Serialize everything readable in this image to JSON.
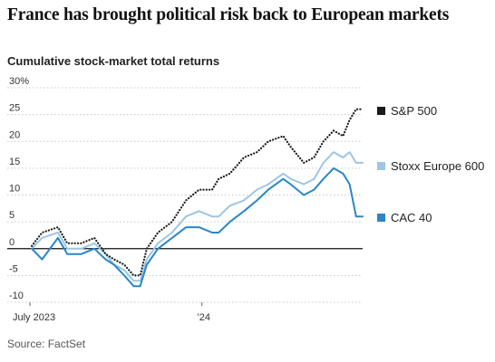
{
  "header": {
    "title": "France has brought political risk back to European markets",
    "subtitle": "Cumulative stock-market total returns"
  },
  "footer": {
    "source": "Source: FactSet"
  },
  "colors": {
    "sp500": "#1a1a1a",
    "stoxx": "#9cc6e3",
    "cac": "#2a86c8",
    "zero_line": "#111111",
    "grid": "#c8c8c8"
  },
  "chart_data": {
    "type": "line",
    "title": "Cumulative stock-market total returns",
    "xlabel": "",
    "ylabel": "",
    "x_ticks": [
      "July 2023",
      "'24"
    ],
    "y_ticks": [
      "30%",
      "25",
      "20",
      "15",
      "10",
      "5",
      "0",
      "-5",
      "-10"
    ],
    "y_tick_values": [
      30,
      25,
      20,
      15,
      10,
      5,
      0,
      -5,
      -10
    ],
    "ylim": [
      -10,
      30
    ],
    "xlim": [
      "2023-07-01",
      "2024-06-21"
    ],
    "grid": "horizontal dotted",
    "legend": "right",
    "series": [
      {
        "name": "S&P 500",
        "key": "sp500",
        "style": "dotted",
        "x": [
          "2023-07-03",
          "2023-07-14",
          "2023-07-31",
          "2023-08-10",
          "2023-08-25",
          "2023-09-08",
          "2023-09-20",
          "2023-09-29",
          "2023-10-10",
          "2023-10-20",
          "2023-10-27",
          "2023-11-03",
          "2023-11-15",
          "2023-11-30",
          "2023-12-15",
          "2023-12-29",
          "2024-01-12",
          "2024-01-19",
          "2024-01-31",
          "2024-02-15",
          "2024-02-29",
          "2024-03-12",
          "2024-03-28",
          "2024-04-05",
          "2024-04-19",
          "2024-04-30",
          "2024-05-10",
          "2024-05-21",
          "2024-05-31",
          "2024-06-07",
          "2024-06-14",
          "2024-06-21"
        ],
        "values": [
          0.5,
          3,
          4,
          1,
          1,
          2,
          -1,
          -2,
          -3,
          -5,
          -5,
          0,
          3,
          5,
          9,
          11,
          11,
          13,
          14,
          17,
          18,
          20,
          21,
          19,
          16,
          17,
          20,
          22,
          21,
          24,
          26,
          26
        ]
      },
      {
        "name": "Stoxx Europe 600",
        "key": "stoxx",
        "style": "solid",
        "x": [
          "2023-07-03",
          "2023-07-14",
          "2023-07-31",
          "2023-08-10",
          "2023-08-25",
          "2023-09-08",
          "2023-09-20",
          "2023-09-29",
          "2023-10-10",
          "2023-10-20",
          "2023-10-27",
          "2023-11-03",
          "2023-11-15",
          "2023-11-30",
          "2023-12-15",
          "2023-12-29",
          "2024-01-12",
          "2024-01-19",
          "2024-01-31",
          "2024-02-15",
          "2024-02-29",
          "2024-03-12",
          "2024-03-28",
          "2024-04-05",
          "2024-04-19",
          "2024-04-30",
          "2024-05-10",
          "2024-05-21",
          "2024-05-31",
          "2024-06-07",
          "2024-06-14",
          "2024-06-21"
        ],
        "values": [
          0,
          2,
          3,
          0,
          0,
          1,
          -1,
          -3,
          -4,
          -6,
          -6,
          -2,
          1,
          3,
          6,
          7,
          6,
          6,
          8,
          9,
          11,
          12,
          14,
          13,
          12,
          13,
          16,
          18,
          17,
          18,
          16,
          16
        ]
      },
      {
        "name": "CAC 40",
        "key": "cac",
        "style": "solid",
        "x": [
          "2023-07-03",
          "2023-07-14",
          "2023-07-31",
          "2023-08-10",
          "2023-08-25",
          "2023-09-08",
          "2023-09-20",
          "2023-09-29",
          "2023-10-10",
          "2023-10-20",
          "2023-10-27",
          "2023-11-03",
          "2023-11-15",
          "2023-11-30",
          "2023-12-15",
          "2023-12-29",
          "2024-01-12",
          "2024-01-19",
          "2024-01-31",
          "2024-02-15",
          "2024-02-29",
          "2024-03-12",
          "2024-03-28",
          "2024-04-05",
          "2024-04-19",
          "2024-04-30",
          "2024-05-10",
          "2024-05-21",
          "2024-05-31",
          "2024-06-07",
          "2024-06-14",
          "2024-06-21"
        ],
        "values": [
          0,
          -2,
          2,
          -1,
          -1,
          0,
          -2,
          -3,
          -5,
          -7,
          -7,
          -3,
          0,
          2,
          4,
          4,
          3,
          3,
          5,
          7,
          9,
          11,
          13,
          12,
          10,
          11,
          13,
          15,
          14,
          12,
          6,
          6
        ]
      }
    ]
  }
}
